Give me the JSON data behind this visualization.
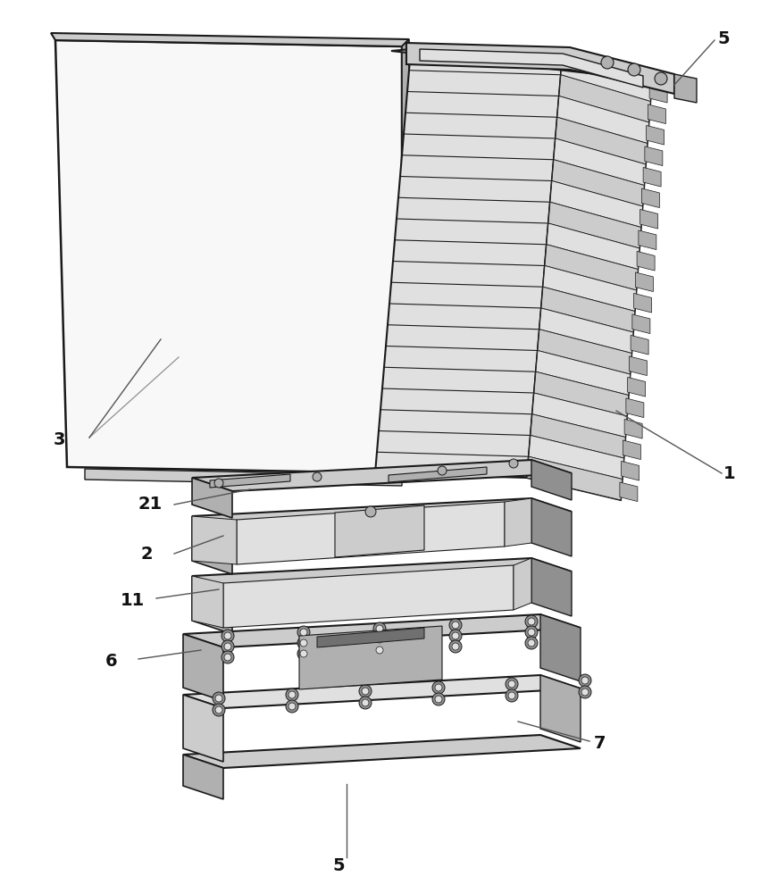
{
  "bg_color": "#ffffff",
  "lc": "#1a1a1a",
  "gray1": "#f2f2f2",
  "gray2": "#e0e0e0",
  "gray3": "#cccccc",
  "gray4": "#b0b0b0",
  "gray5": "#909090",
  "gray6": "#707070",
  "n_cells": 20
}
